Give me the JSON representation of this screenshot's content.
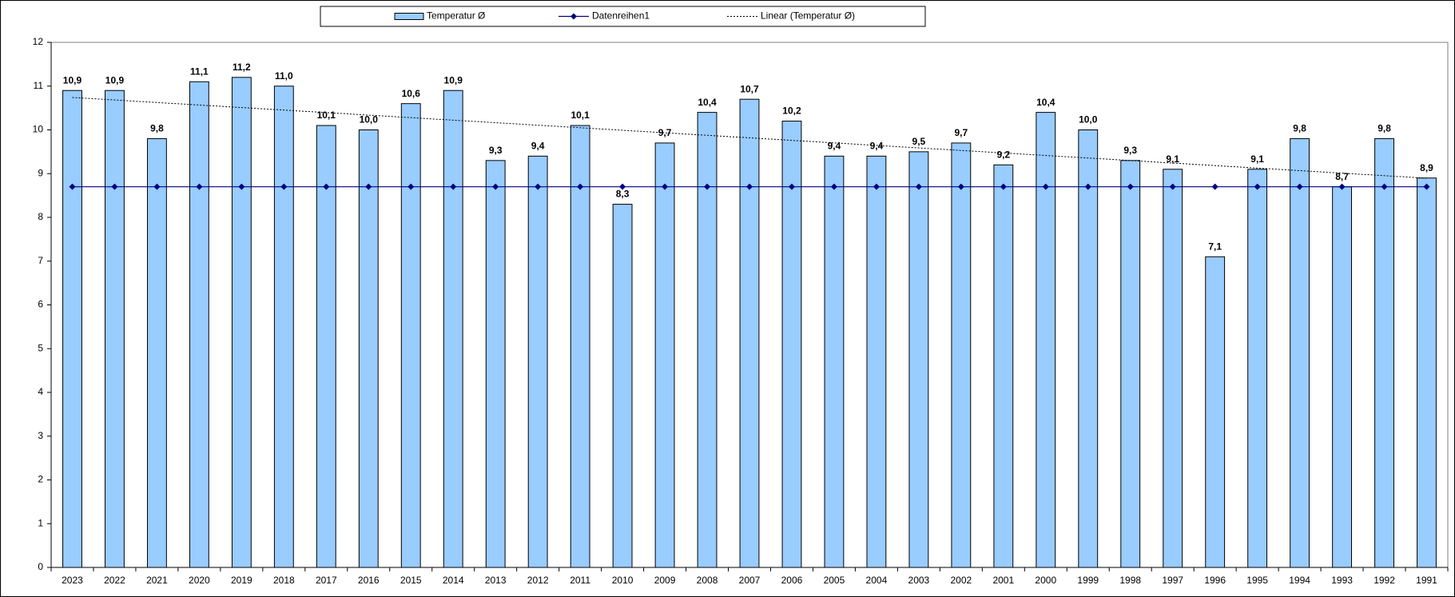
{
  "chart_data": {
    "type": "bar",
    "categories": [
      "2023",
      "2022",
      "2021",
      "2020",
      "2019",
      "2018",
      "2017",
      "2016",
      "2015",
      "2014",
      "2013",
      "2012",
      "2011",
      "2010",
      "2009",
      "2008",
      "2007",
      "2006",
      "2005",
      "2004",
      "2003",
      "2002",
      "2001",
      "2000",
      "1999",
      "1998",
      "1997",
      "1996",
      "1995",
      "1994",
      "1993",
      "1992",
      "1991"
    ],
    "series": [
      {
        "name": "Temperatur Ø",
        "color": "#99ccff",
        "values": [
          10.9,
          10.9,
          9.8,
          11.1,
          11.2,
          11.0,
          10.1,
          10.0,
          10.6,
          10.9,
          9.3,
          9.4,
          10.1,
          8.3,
          9.7,
          10.4,
          10.7,
          10.2,
          9.4,
          9.4,
          9.5,
          9.7,
          9.2,
          10.4,
          10.0,
          9.3,
          9.1,
          7.1,
          9.1,
          9.8,
          8.7,
          9.8,
          8.9
        ],
        "value_labels": [
          "10,9",
          "10,9",
          "9,8",
          "11,1",
          "11,2",
          "11,0",
          "10,1",
          "10,0",
          "10,6",
          "10,9",
          "9,3",
          "9,4",
          "10,1",
          "8,3",
          "9,7",
          "10,4",
          "10,7",
          "10,2",
          "9,4",
          "9,4",
          "9,5",
          "9,7",
          "9,2",
          "10,4",
          "10,0",
          "9,3",
          "9,1",
          "7,1",
          "9,1",
          "9,8",
          "8,7",
          "9,8",
          "8,9"
        ]
      },
      {
        "name": "Datenreihen1",
        "color": "#000080",
        "values": [
          8.7,
          8.7,
          8.7,
          8.7,
          8.7,
          8.7,
          8.7,
          8.7,
          8.7,
          8.7,
          8.7,
          8.7,
          8.7,
          8.7,
          8.7,
          8.7,
          8.7,
          8.7,
          8.7,
          8.7,
          8.7,
          8.7,
          8.7,
          8.7,
          8.7,
          8.7,
          8.7,
          8.7,
          8.7,
          8.7,
          8.7,
          8.7,
          8.7
        ]
      }
    ],
    "trendline": {
      "name": "Linear (Temperatur Ø)",
      "color": "#000000"
    },
    "ylim": [
      0,
      12
    ],
    "yticks": [
      0,
      1,
      2,
      3,
      4,
      5,
      6,
      7,
      8,
      9,
      10,
      11,
      12
    ]
  }
}
